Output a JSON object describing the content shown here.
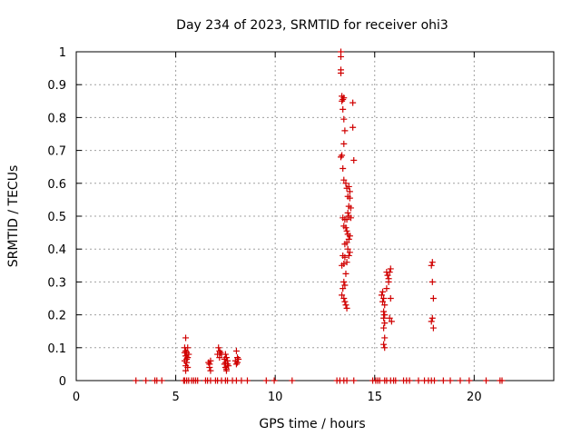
{
  "chart_data": {
    "type": "scatter",
    "title": "Day 234 of 2023, SRMTID for receiver ohi3",
    "xlabel": "GPS time / hours",
    "ylabel": "SRMTID / TECUs",
    "xlim": [
      0,
      24
    ],
    "ylim": [
      0,
      1
    ],
    "xticks": [
      0,
      5,
      10,
      15,
      20
    ],
    "yticks": [
      0,
      0.1,
      0.2,
      0.3,
      0.4,
      0.5,
      0.6,
      0.7,
      0.8,
      0.9,
      1
    ],
    "xtick_labels": [
      "0",
      "5",
      "10",
      "15",
      "20"
    ],
    "ytick_labels": [
      "0",
      "0.1",
      "0.2",
      "0.3",
      "0.4",
      "0.5",
      "0.6",
      "0.7",
      "0.8",
      "0.9",
      "1"
    ],
    "grid": true,
    "marker": "+",
    "color": "#d00000",
    "series": [
      {
        "name": "SRMTID",
        "points": [
          [
            3.0,
            0
          ],
          [
            3.5,
            0
          ],
          [
            3.95,
            0
          ],
          [
            4.05,
            0
          ],
          [
            4.3,
            0
          ],
          [
            5.4,
            0
          ],
          [
            5.45,
            0
          ],
          [
            5.55,
            0
          ],
          [
            5.65,
            0
          ],
          [
            5.8,
            0
          ],
          [
            5.9,
            0
          ],
          [
            6.0,
            0
          ],
          [
            6.1,
            0
          ],
          [
            6.5,
            0
          ],
          [
            6.6,
            0
          ],
          [
            6.75,
            0
          ],
          [
            7.0,
            0
          ],
          [
            7.1,
            0
          ],
          [
            7.3,
            0
          ],
          [
            7.5,
            0
          ],
          [
            7.6,
            0
          ],
          [
            7.85,
            0
          ],
          [
            8.05,
            0
          ],
          [
            8.3,
            0
          ],
          [
            8.6,
            0
          ],
          [
            9.55,
            0
          ],
          [
            9.95,
            0
          ],
          [
            10.85,
            0
          ],
          [
            13.1,
            0
          ],
          [
            13.25,
            0
          ],
          [
            13.45,
            0
          ],
          [
            13.6,
            0
          ],
          [
            13.95,
            0
          ],
          [
            14.9,
            0
          ],
          [
            15.05,
            0
          ],
          [
            15.15,
            0
          ],
          [
            15.25,
            0
          ],
          [
            15.5,
            0
          ],
          [
            15.6,
            0
          ],
          [
            15.8,
            0
          ],
          [
            15.95,
            0
          ],
          [
            16.05,
            0
          ],
          [
            16.45,
            0
          ],
          [
            16.6,
            0
          ],
          [
            16.75,
            0
          ],
          [
            17.2,
            0
          ],
          [
            17.5,
            0
          ],
          [
            17.7,
            0
          ],
          [
            17.85,
            0
          ],
          [
            18.0,
            0
          ],
          [
            18.45,
            0
          ],
          [
            18.8,
            0
          ],
          [
            19.3,
            0
          ],
          [
            19.75,
            0
          ],
          [
            20.6,
            0
          ],
          [
            21.3,
            0
          ],
          [
            21.4,
            0
          ],
          [
            5.5,
            0.13
          ],
          [
            5.45,
            0.1
          ],
          [
            5.5,
            0.09
          ],
          [
            5.55,
            0.085
          ],
          [
            5.6,
            0.1
          ],
          [
            5.5,
            0.075
          ],
          [
            5.6,
            0.07
          ],
          [
            5.45,
            0.06
          ],
          [
            5.55,
            0.055
          ],
          [
            5.5,
            0.045
          ],
          [
            5.6,
            0.04
          ],
          [
            5.5,
            0.03
          ],
          [
            5.55,
            0.065
          ],
          [
            5.65,
            0.08
          ],
          [
            5.45,
            0.085
          ],
          [
            6.7,
            0.05
          ],
          [
            6.75,
            0.06
          ],
          [
            6.7,
            0.04
          ],
          [
            6.75,
            0.03
          ],
          [
            6.65,
            0.055
          ],
          [
            7.15,
            0.1
          ],
          [
            7.2,
            0.09
          ],
          [
            7.25,
            0.085
          ],
          [
            7.1,
            0.08
          ],
          [
            7.3,
            0.08
          ],
          [
            7.2,
            0.07
          ],
          [
            7.5,
            0.08
          ],
          [
            7.55,
            0.07
          ],
          [
            7.6,
            0.06
          ],
          [
            7.45,
            0.05
          ],
          [
            7.5,
            0.04
          ],
          [
            7.55,
            0.03
          ],
          [
            7.6,
            0.05
          ],
          [
            7.45,
            0.065
          ],
          [
            7.65,
            0.045
          ],
          [
            7.5,
            0.055
          ],
          [
            7.55,
            0.035
          ],
          [
            8.05,
            0.09
          ],
          [
            8.1,
            0.07
          ],
          [
            8.0,
            0.06
          ],
          [
            8.05,
            0.05
          ],
          [
            8.1,
            0.055
          ],
          [
            8.15,
            0.065
          ],
          [
            13.3,
            1.0
          ],
          [
            13.3,
            0.985
          ],
          [
            13.3,
            0.945
          ],
          [
            13.3,
            0.935
          ],
          [
            13.35,
            0.865
          ],
          [
            13.4,
            0.855
          ],
          [
            13.45,
            0.86
          ],
          [
            13.35,
            0.85
          ],
          [
            13.4,
            0.825
          ],
          [
            13.45,
            0.795
          ],
          [
            13.5,
            0.76
          ],
          [
            13.45,
            0.72
          ],
          [
            13.35,
            0.685
          ],
          [
            13.3,
            0.68
          ],
          [
            13.4,
            0.645
          ],
          [
            13.45,
            0.61
          ],
          [
            13.9,
            0.845
          ],
          [
            13.9,
            0.77
          ],
          [
            13.95,
            0.67
          ],
          [
            13.55,
            0.6
          ],
          [
            13.6,
            0.585
          ],
          [
            13.7,
            0.59
          ],
          [
            13.75,
            0.575
          ],
          [
            13.65,
            0.56
          ],
          [
            13.75,
            0.555
          ],
          [
            13.7,
            0.53
          ],
          [
            13.8,
            0.525
          ],
          [
            13.65,
            0.51
          ],
          [
            13.7,
            0.5
          ],
          [
            13.8,
            0.495
          ],
          [
            13.6,
            0.49
          ],
          [
            13.5,
            0.49
          ],
          [
            13.4,
            0.495
          ],
          [
            13.45,
            0.47
          ],
          [
            13.55,
            0.465
          ],
          [
            13.6,
            0.455
          ],
          [
            13.65,
            0.445
          ],
          [
            13.75,
            0.44
          ],
          [
            13.7,
            0.43
          ],
          [
            13.6,
            0.42
          ],
          [
            13.5,
            0.415
          ],
          [
            13.65,
            0.4
          ],
          [
            13.75,
            0.39
          ],
          [
            13.7,
            0.38
          ],
          [
            13.5,
            0.375
          ],
          [
            13.4,
            0.38
          ],
          [
            13.6,
            0.36
          ],
          [
            13.45,
            0.355
          ],
          [
            13.35,
            0.35
          ],
          [
            13.55,
            0.325
          ],
          [
            13.45,
            0.3
          ],
          [
            13.5,
            0.29
          ],
          [
            13.4,
            0.28
          ],
          [
            13.35,
            0.26
          ],
          [
            13.45,
            0.25
          ],
          [
            13.5,
            0.24
          ],
          [
            13.55,
            0.23
          ],
          [
            13.6,
            0.22
          ],
          [
            15.4,
            0.27
          ],
          [
            15.35,
            0.26
          ],
          [
            15.45,
            0.25
          ],
          [
            15.4,
            0.24
          ],
          [
            15.5,
            0.23
          ],
          [
            15.45,
            0.21
          ],
          [
            15.5,
            0.2
          ],
          [
            15.45,
            0.19
          ],
          [
            15.5,
            0.175
          ],
          [
            15.45,
            0.16
          ],
          [
            15.5,
            0.13
          ],
          [
            15.45,
            0.11
          ],
          [
            15.5,
            0.1
          ],
          [
            15.6,
            0.33
          ],
          [
            15.65,
            0.32
          ],
          [
            15.7,
            0.31
          ],
          [
            15.8,
            0.34
          ],
          [
            15.75,
            0.33
          ],
          [
            15.6,
            0.28
          ],
          [
            15.7,
            0.3
          ],
          [
            15.8,
            0.25
          ],
          [
            15.75,
            0.19
          ],
          [
            15.85,
            0.18
          ],
          [
            17.9,
            0.36
          ],
          [
            17.85,
            0.35
          ],
          [
            17.9,
            0.3
          ],
          [
            17.95,
            0.25
          ],
          [
            17.9,
            0.19
          ],
          [
            17.85,
            0.18
          ],
          [
            17.95,
            0.16
          ]
        ]
      }
    ]
  }
}
